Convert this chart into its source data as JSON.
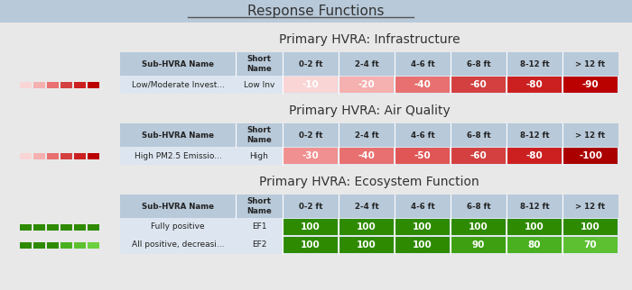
{
  "title": "Response Functions",
  "bg_color": "#b8c9d9",
  "body_bg": "#e8e8e8",
  "col_labels": [
    "Sub-HVRA Name",
    "Short\nName",
    "0-2 ft",
    "2-4 ft",
    "4-6 ft",
    "6-8 ft",
    "8-12 ft",
    "> 12 ft"
  ],
  "sections": [
    {
      "title": "Primary HVRA: Infrastructure",
      "rows": [
        {
          "name": "Low/Moderate Invest...",
          "short": "Low Inv",
          "values": [
            -10,
            -20,
            -40,
            -60,
            -80,
            -90
          ],
          "legend_colors": [
            "#f9d5d5",
            "#f5b0b0",
            "#e87070",
            "#d44040",
            "#cc2020",
            "#bb0000"
          ],
          "is_negative": true
        }
      ]
    },
    {
      "title": "Primary HVRA: Air Quality",
      "rows": [
        {
          "name": "High PM2.5 Emissio...",
          "short": "High",
          "values": [
            -30,
            -40,
            -50,
            -60,
            -80,
            -100
          ],
          "legend_colors": [
            "#f9d5d5",
            "#f5b0b0",
            "#e87070",
            "#d44040",
            "#cc2020",
            "#bb0000"
          ],
          "is_negative": true
        }
      ]
    },
    {
      "title": "Primary HVRA: Ecosystem Function",
      "rows": [
        {
          "name": "Fully positive",
          "short": "EF1",
          "values": [
            100,
            100,
            100,
            100,
            100,
            100
          ],
          "legend_colors": [
            "#2e8a00",
            "#2e8a00",
            "#2e8a00",
            "#2e8a00",
            "#2e8a00",
            "#2e8a00"
          ],
          "is_negative": false
        },
        {
          "name": "All positive, decreasi...",
          "short": "EF2",
          "values": [
            100,
            100,
            100,
            90,
            80,
            70
          ],
          "legend_colors": [
            "#2e8a00",
            "#2e8a00",
            "#2e8a00",
            "#4ab020",
            "#5cc030",
            "#6dd040"
          ],
          "is_negative": false
        }
      ]
    }
  ],
  "neg_color_map": {
    "-10": "#f9d5d5",
    "-20": "#f5b0b0",
    "-30": "#f09090",
    "-40": "#e87070",
    "-50": "#e05555",
    "-60": "#d44040",
    "-80": "#cc2020",
    "-90": "#bb0000",
    "-100": "#aa0000"
  },
  "pos_color_map": {
    "70": "#5cc030",
    "80": "#4ab020",
    "90": "#3ea010",
    "100": "#2e8a00"
  }
}
